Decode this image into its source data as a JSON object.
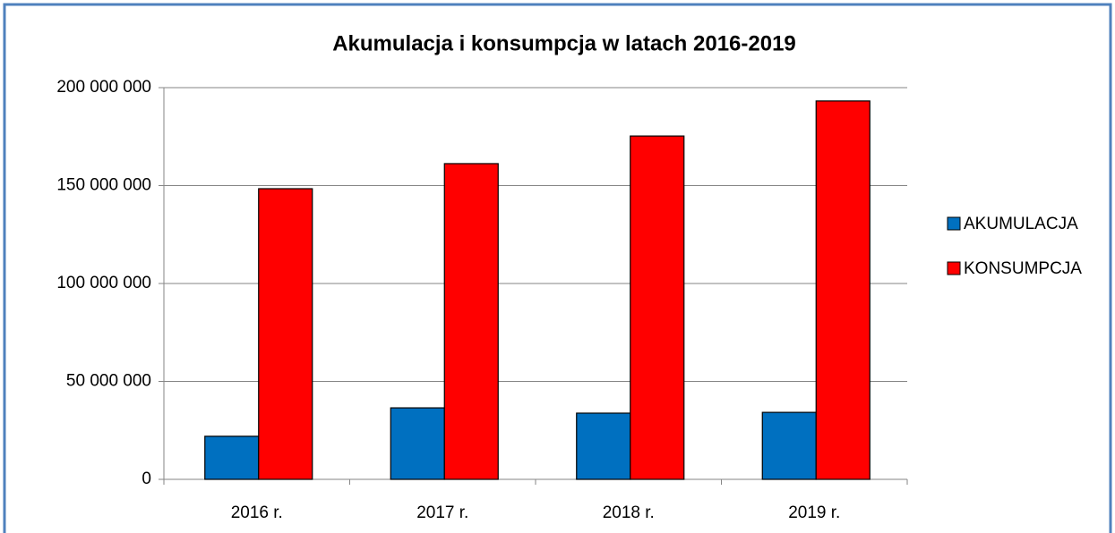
{
  "chart_data": {
    "type": "bar",
    "title": "Akumulacja i konsumpcja w latach 2016-2019",
    "categories": [
      "2016 r.",
      "2017 r.",
      "2018 r.",
      "2019 r."
    ],
    "series": [
      {
        "name": "AKUMULACJA",
        "color": "#0070c0",
        "values": [
          22000000,
          36500000,
          33800000,
          34200000
        ]
      },
      {
        "name": "KONSUMPCJA",
        "color": "#ff0000",
        "values": [
          148400000,
          161200000,
          175300000,
          193200000
        ]
      }
    ],
    "ylim": [
      0,
      200000000
    ],
    "yticks": [
      0,
      {
        "value": 50000000,
        "label": "50 000 000"
      },
      {
        "value": 100000000,
        "label": "100 000 000"
      },
      {
        "value": 150000000,
        "label": "150 000 000"
      },
      {
        "value": 200000000,
        "label": "200 000 000"
      }
    ],
    "grid": true,
    "legend": "right"
  }
}
